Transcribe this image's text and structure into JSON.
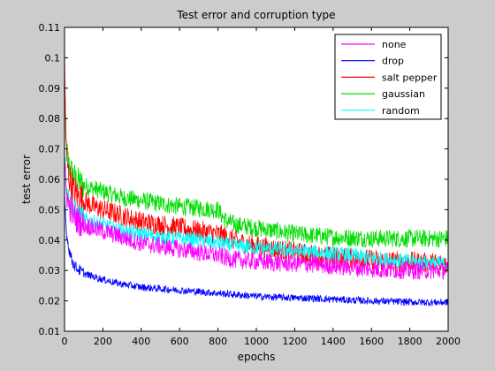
{
  "chart_data": {
    "type": "line",
    "title": "Test error and corruption type",
    "xlabel": "epochs",
    "ylabel": "test error",
    "xlim": [
      0,
      2000
    ],
    "ylim": [
      0.01,
      0.11
    ],
    "xticks": [
      0,
      200,
      400,
      600,
      800,
      1000,
      1200,
      1400,
      1600,
      1800,
      2000
    ],
    "yticks": [
      0.01,
      0.02,
      0.03,
      0.04,
      0.05,
      0.06,
      0.07,
      0.08,
      0.09,
      0.1,
      0.11
    ],
    "xtick_labels": [
      "0",
      "200",
      "400",
      "600",
      "800",
      "1000",
      "1200",
      "1400",
      "1600",
      "1800",
      "2000"
    ],
    "ytick_labels": [
      "0.01",
      "0.02",
      "0.03",
      "0.04",
      "0.05",
      "0.06",
      "0.07",
      "0.08",
      "0.09",
      "0.1",
      "0.11"
    ],
    "grid": false,
    "legend_position": "top-right",
    "series": [
      {
        "name": "none",
        "color": "#ff00ff",
        "x": [
          0,
          5,
          10,
          20,
          40,
          60,
          80,
          100,
          150,
          200,
          300,
          400,
          500,
          600,
          700,
          800,
          850,
          900,
          1000,
          1100,
          1200,
          1300,
          1400,
          1500,
          1600,
          1700,
          1800,
          1900,
          2000
        ],
        "y": [
          0.062,
          0.06,
          0.056,
          0.052,
          0.049,
          0.047,
          0.046,
          0.045,
          0.044,
          0.043,
          0.041,
          0.039,
          0.038,
          0.037,
          0.036,
          0.035,
          0.034,
          0.0335,
          0.033,
          0.0325,
          0.0322,
          0.032,
          0.0315,
          0.031,
          0.0305,
          0.0302,
          0.03,
          0.03,
          0.03
        ]
      },
      {
        "name": "drop",
        "color": "#0000ff",
        "x": [
          0,
          5,
          10,
          20,
          40,
          60,
          80,
          100,
          150,
          200,
          300,
          400,
          500,
          600,
          700,
          800,
          900,
          1000,
          1100,
          1200,
          1300,
          1400,
          1500,
          1600,
          1700,
          1800,
          1900,
          2000
        ],
        "y": [
          0.055,
          0.048,
          0.043,
          0.038,
          0.033,
          0.031,
          0.03,
          0.029,
          0.028,
          0.027,
          0.0255,
          0.0245,
          0.024,
          0.0235,
          0.023,
          0.0225,
          0.022,
          0.0215,
          0.0212,
          0.021,
          0.0208,
          0.0205,
          0.0202,
          0.02,
          0.0198,
          0.0196,
          0.0195,
          0.0195
        ]
      },
      {
        "name": "salt pepper",
        "color": "#ff0000",
        "x": [
          0,
          5,
          10,
          20,
          40,
          60,
          80,
          100,
          150,
          200,
          300,
          400,
          500,
          600,
          700,
          800,
          850,
          900,
          1000,
          1100,
          1200,
          1300,
          1400,
          1500,
          1600,
          1700,
          1800,
          1900,
          2000
        ],
        "y": [
          0.1,
          0.08,
          0.068,
          0.062,
          0.057,
          0.055,
          0.054,
          0.053,
          0.051,
          0.05,
          0.048,
          0.046,
          0.045,
          0.044,
          0.043,
          0.042,
          0.041,
          0.0395,
          0.038,
          0.037,
          0.036,
          0.035,
          0.0345,
          0.034,
          0.0335,
          0.033,
          0.0328,
          0.0325,
          0.0322
        ]
      },
      {
        "name": "gaussian",
        "color": "#00dd00",
        "x": [
          0,
          5,
          10,
          20,
          40,
          60,
          80,
          100,
          150,
          200,
          300,
          400,
          500,
          600,
          700,
          800,
          820,
          850,
          900,
          1000,
          1100,
          1200,
          1300,
          1400,
          1500,
          1600,
          1700,
          1800,
          1900,
          2000
        ],
        "y": [
          0.088,
          0.078,
          0.07,
          0.065,
          0.062,
          0.06,
          0.059,
          0.058,
          0.057,
          0.056,
          0.054,
          0.053,
          0.052,
          0.051,
          0.0505,
          0.05,
          0.048,
          0.046,
          0.045,
          0.044,
          0.043,
          0.042,
          0.0415,
          0.041,
          0.0408,
          0.0405,
          0.0405,
          0.0405,
          0.0405,
          0.0405
        ]
      },
      {
        "name": "random",
        "color": "#00ffff",
        "x": [
          0,
          5,
          10,
          20,
          40,
          60,
          80,
          100,
          150,
          200,
          300,
          400,
          500,
          600,
          700,
          800,
          900,
          1000,
          1100,
          1200,
          1300,
          1400,
          1500,
          1600,
          1700,
          1800,
          1900,
          2000
        ],
        "y": [
          0.068,
          0.063,
          0.058,
          0.054,
          0.051,
          0.049,
          0.048,
          0.047,
          0.046,
          0.045,
          0.043,
          0.042,
          0.041,
          0.0405,
          0.04,
          0.039,
          0.038,
          0.0375,
          0.037,
          0.0365,
          0.036,
          0.0355,
          0.035,
          0.034,
          0.0335,
          0.033,
          0.0325,
          0.032
        ]
      }
    ]
  }
}
